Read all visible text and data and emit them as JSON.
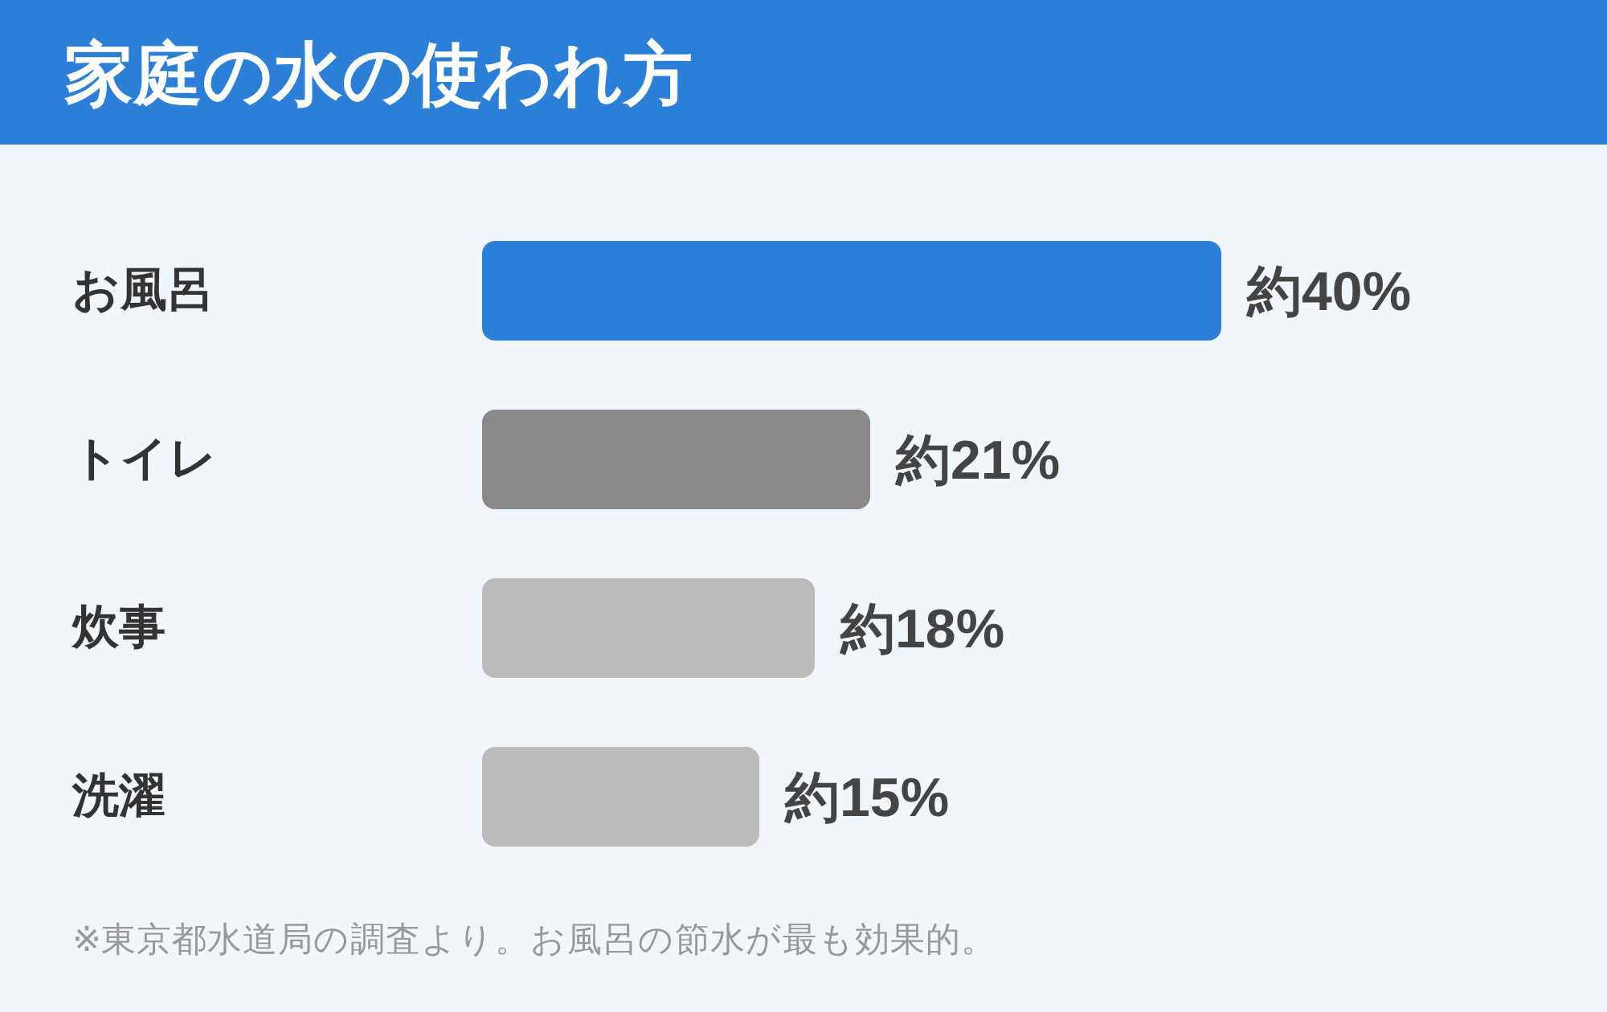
{
  "chart_data": {
    "type": "bar",
    "orientation": "horizontal",
    "title": "家庭の水の使われ方",
    "categories": [
      "お風呂",
      "トイレ",
      "炊事",
      "洗濯"
    ],
    "values": [
      40,
      21,
      18,
      15
    ],
    "colors": [
      "#2c7fd6",
      "#898989",
      "#bbbbbb",
      "#bbbbbb"
    ],
    "value_labels": [
      "約40%",
      "約21%",
      "約18%",
      "約15%"
    ],
    "annotations": [
      "※東京都水道局の調査より。お風呂の節水が最も効果的。"
    ]
  }
}
